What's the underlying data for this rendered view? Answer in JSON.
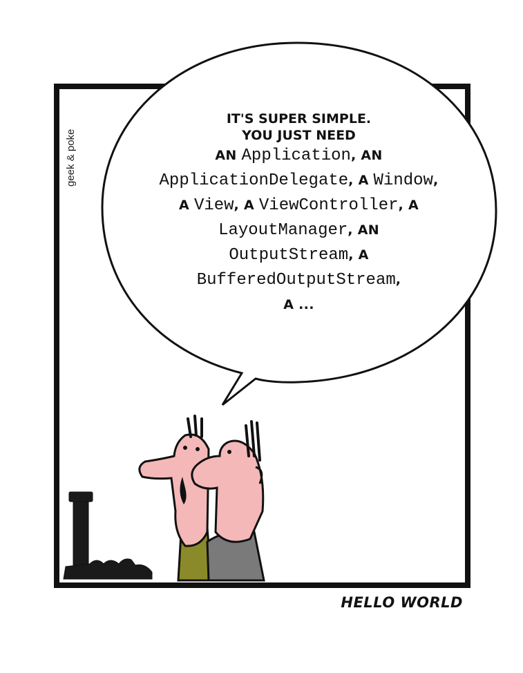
{
  "comic": {
    "signature": "geek & poke",
    "caption": "HELLO WORLD",
    "speech": {
      "heading_1": "IT'S SUPER SIMPLE.",
      "heading_2": "YOU JUST NEED",
      "lines": [
        [
          {
            "t": "AN ",
            "s": "comic"
          },
          {
            "t": "Application",
            "s": "code"
          },
          {
            "t": ", AN",
            "s": "comic"
          }
        ],
        [
          {
            "t": "ApplicationDelegate",
            "s": "code"
          },
          {
            "t": ", A ",
            "s": "comic"
          },
          {
            "t": "Window",
            "s": "code"
          },
          {
            "t": ",",
            "s": "comic"
          }
        ],
        [
          {
            "t": "A ",
            "s": "comic"
          },
          {
            "t": "View",
            "s": "code"
          },
          {
            "t": ", A ",
            "s": "comic"
          },
          {
            "t": "ViewController",
            "s": "code"
          },
          {
            "t": ", A",
            "s": "comic"
          }
        ],
        [
          {
            "t": "LayoutManager",
            "s": "code"
          },
          {
            "t": ", AN",
            "s": "comic"
          }
        ],
        [
          {
            "t": "OutputStream",
            "s": "code"
          },
          {
            "t": ", A",
            "s": "comic"
          }
        ],
        [
          {
            "t": "BufferedOutputStream",
            "s": "code"
          },
          {
            "t": ",",
            "s": "comic"
          }
        ],
        [
          {
            "t": "A ...",
            "s": "comic"
          }
        ]
      ]
    },
    "colors": {
      "outline": "#111111",
      "skin": "#f4b8b8",
      "shirt_left": "#8a8a2a",
      "shirt_right": "#7a7a7a",
      "keyboard": "#1a1a1a"
    }
  }
}
